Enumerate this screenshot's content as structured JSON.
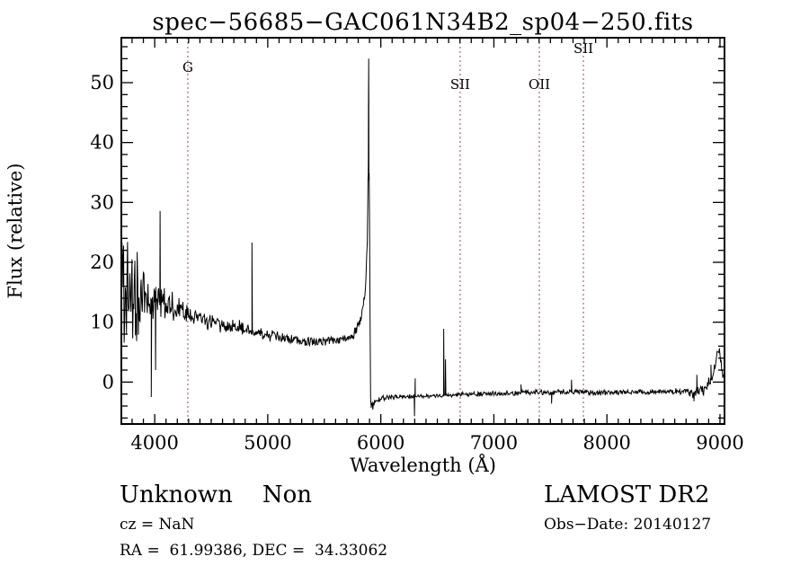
{
  "chart_data": {
    "type": "line",
    "title": "spec−56685−GAC061N34B2_sp04−250.fits",
    "xlabel": "Wavelength (Å)",
    "ylabel": "Flux (relative)",
    "xlim": [
      3705,
      9040
    ],
    "ylim": [
      -7,
      57.5
    ],
    "xticks": [
      4000,
      5000,
      6000,
      7000,
      8000,
      9000
    ],
    "yticks": [
      0,
      10,
      20,
      30,
      40,
      50
    ],
    "x_minor_step": 100,
    "y_minor_step": 2,
    "grid": false,
    "line_color": "#000000",
    "marker_line_color": "#8e5050",
    "spectral_lines": [
      {
        "label": "G",
        "wavelength": 4293,
        "label_baseline_y": 80
      },
      {
        "label": "SII",
        "wavelength": 6702,
        "label_baseline_y": 99
      },
      {
        "label": "OII",
        "wavelength": 7402,
        "label_baseline_y": 99
      },
      {
        "label": "SII",
        "wavelength": 7792,
        "label_baseline_y": 59
      }
    ],
    "noise_seed": 20140127,
    "sample_step": 5,
    "envelope": [
      [
        3705,
        16,
        20
      ],
      [
        3715,
        17,
        15
      ],
      [
        3730,
        15,
        12
      ],
      [
        3760,
        15,
        10
      ],
      [
        3800,
        15,
        9
      ],
      [
        3840,
        14,
        9
      ],
      [
        3880,
        14,
        7
      ],
      [
        3920,
        14.5,
        5
      ],
      [
        3960,
        14,
        4.5
      ],
      [
        4000,
        13.5,
        4
      ],
      [
        4050,
        13.5,
        3.5
      ],
      [
        4100,
        13,
        3
      ],
      [
        4150,
        12.8,
        3
      ],
      [
        4200,
        12.3,
        2.5
      ],
      [
        4250,
        11.6,
        2.2
      ],
      [
        4300,
        11.2,
        2
      ],
      [
        4350,
        10.8,
        2
      ],
      [
        4400,
        10.5,
        1.8
      ],
      [
        4500,
        10,
        1.6
      ],
      [
        4600,
        9.6,
        1.5
      ],
      [
        4700,
        9.2,
        1.4
      ],
      [
        4800,
        8.9,
        1.3
      ],
      [
        4900,
        8.4,
        1.2
      ],
      [
        5000,
        8,
        1.2
      ],
      [
        5100,
        7.5,
        1.1
      ],
      [
        5200,
        7.2,
        1
      ],
      [
        5300,
        6.9,
        1
      ],
      [
        5400,
        6.7,
        1
      ],
      [
        5500,
        6.7,
        1
      ],
      [
        5600,
        6.9,
        0.9
      ],
      [
        5700,
        7.3,
        0.9
      ],
      [
        5760,
        8,
        0.9
      ],
      [
        5800,
        9.2,
        1
      ],
      [
        5830,
        10.8,
        1.2
      ],
      [
        5855,
        13.5,
        1.5
      ],
      [
        5870,
        18,
        2.5
      ],
      [
        5880,
        26,
        5
      ],
      [
        5888,
        32,
        6
      ],
      [
        5895,
        36,
        5
      ],
      [
        5901,
        29,
        5
      ],
      [
        5904,
        15,
        5
      ],
      [
        5907,
        -3.5,
        1.5
      ],
      [
        5915,
        -4.2,
        1.2
      ],
      [
        5930,
        -3.9,
        1.1
      ],
      [
        5950,
        -3.3,
        0.9
      ],
      [
        5980,
        -2.8,
        0.6
      ],
      [
        6020,
        -2.6,
        0.5
      ],
      [
        6100,
        -2.5,
        0.45
      ],
      [
        6200,
        -2.45,
        0.45
      ],
      [
        6300,
        -2.4,
        0.4
      ],
      [
        6400,
        -2.35,
        0.4
      ],
      [
        6500,
        -2.25,
        0.4
      ],
      [
        6600,
        -2.15,
        0.4
      ],
      [
        6700,
        -2.1,
        0.45
      ],
      [
        6800,
        -2.05,
        0.45
      ],
      [
        6900,
        -1.95,
        0.45
      ],
      [
        7000,
        -1.9,
        0.5
      ],
      [
        7100,
        -1.85,
        0.45
      ],
      [
        7200,
        -1.8,
        0.5
      ],
      [
        7300,
        -1.75,
        0.5
      ],
      [
        7400,
        -1.7,
        0.5
      ],
      [
        7500,
        -1.75,
        0.55
      ],
      [
        7600,
        -1.65,
        0.5
      ],
      [
        7700,
        -1.6,
        0.5
      ],
      [
        7800,
        -1.65,
        0.5
      ],
      [
        7900,
        -1.75,
        0.6
      ],
      [
        8000,
        -1.8,
        0.6
      ],
      [
        8100,
        -1.75,
        0.55
      ],
      [
        8200,
        -1.65,
        0.5
      ],
      [
        8300,
        -1.7,
        0.55
      ],
      [
        8400,
        -1.65,
        0.5
      ],
      [
        8500,
        -1.55,
        0.5
      ],
      [
        8600,
        -1.6,
        0.6
      ],
      [
        8700,
        -1.55,
        0.65
      ],
      [
        8760,
        -1.9,
        0.9
      ],
      [
        8800,
        -1.2,
        1.1
      ],
      [
        8850,
        -1.4,
        1.0
      ],
      [
        8900,
        -0.2,
        1.2
      ],
      [
        8940,
        1.5,
        1.3
      ],
      [
        8970,
        3.8,
        1.2
      ],
      [
        8995,
        5.5,
        0.8
      ],
      [
        9010,
        3.0,
        1.0
      ],
      [
        9025,
        1.2,
        0.8
      ],
      [
        9040,
        0.8,
        0.7
      ]
    ],
    "spikes": [
      [
        3970,
        -2.5
      ],
      [
        4008,
        2.0
      ],
      [
        4048,
        28.6
      ],
      [
        4860,
        23.3
      ],
      [
        5891,
        46
      ],
      [
        5893,
        54
      ],
      [
        6298,
        -5.7
      ],
      [
        6304,
        0.6
      ],
      [
        6556,
        8.9
      ],
      [
        6572,
        3.8
      ],
      [
        7240,
        -0.4
      ],
      [
        7510,
        -3.6
      ],
      [
        7687,
        0.4
      ],
      [
        8770,
        -3.2
      ],
      [
        8795,
        1.2
      ],
      [
        8920,
        2.9
      ]
    ]
  },
  "footer": {
    "class_label": "Unknown    Non",
    "cz": "cz = NaN",
    "coords": "RA =  61.99386, DEC =  34.33062",
    "survey": "LAMOST DR2",
    "obs_date": "Obs−Date: 20140127"
  }
}
